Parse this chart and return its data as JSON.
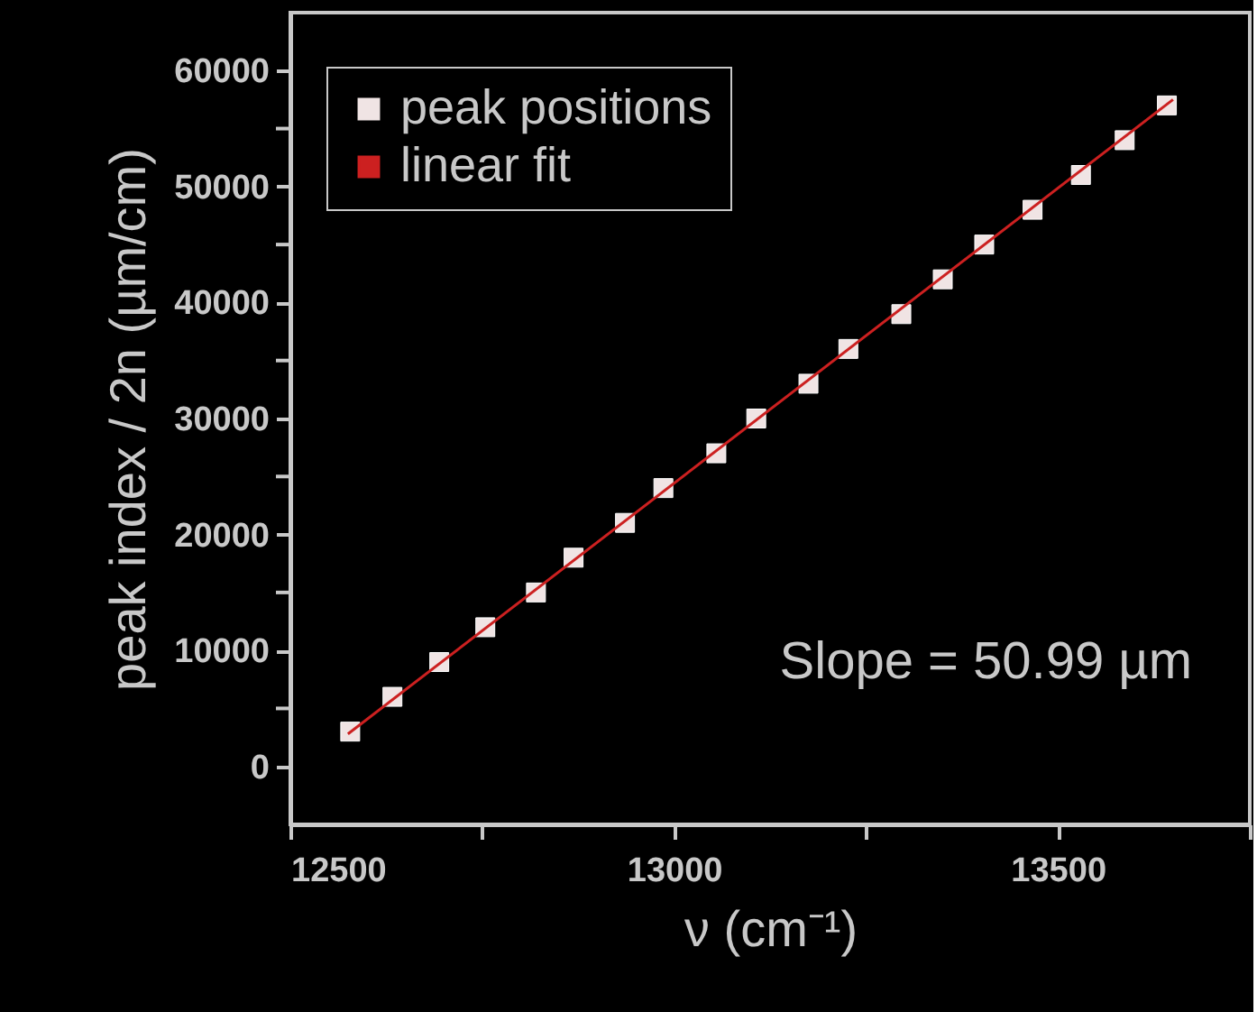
{
  "chart_data": {
    "type": "scatter",
    "xlabel": "ν (cm⁻¹)",
    "ylabel": "peak index / 2n (µm/cm)",
    "series": [
      {
        "name": "peak positions",
        "type": "scatter",
        "color": "#f0e4e4",
        "marker": "square",
        "x": [
          12578,
          12633,
          12694,
          12754,
          12820,
          12869,
          12936,
          12986,
          13055,
          13107,
          13175,
          13227,
          13296,
          13350,
          13404,
          13467,
          13530,
          13587,
          13642
        ],
        "values": [
          3000,
          6000,
          9000,
          12000,
          15000,
          18000,
          21000,
          24000,
          27000,
          30000,
          33000,
          36000,
          39000,
          42000,
          45000,
          48000,
          51000,
          54000,
          57000
        ]
      },
      {
        "name": "linear fit",
        "type": "line",
        "color": "#cc2020",
        "line_style": "solid",
        "x": [
          12575,
          13650
        ],
        "values": [
          2800,
          57500
        ]
      }
    ],
    "xlim": [
      12500,
      13750
    ],
    "ylim": [
      -5000,
      65000
    ],
    "xticks": [
      12500,
      {
        "value": 12750,
        "label": null
      },
      13000,
      {
        "value": 13250,
        "label": null
      },
      13500,
      {
        "value": 13750,
        "label": null
      }
    ],
    "yticks": [
      0,
      {
        "value": 5000,
        "label": null
      },
      10000,
      {
        "value": 15000,
        "label": null
      },
      20000,
      {
        "value": 25000,
        "label": null
      },
      30000,
      {
        "value": 35000,
        "label": null
      },
      40000,
      {
        "value": 45000,
        "label": null
      },
      50000,
      {
        "value": 55000,
        "label": null
      },
      60000
    ],
    "annotations": [
      "Slope = 50.99 µm"
    ],
    "legend": "top left",
    "grid": false
  }
}
